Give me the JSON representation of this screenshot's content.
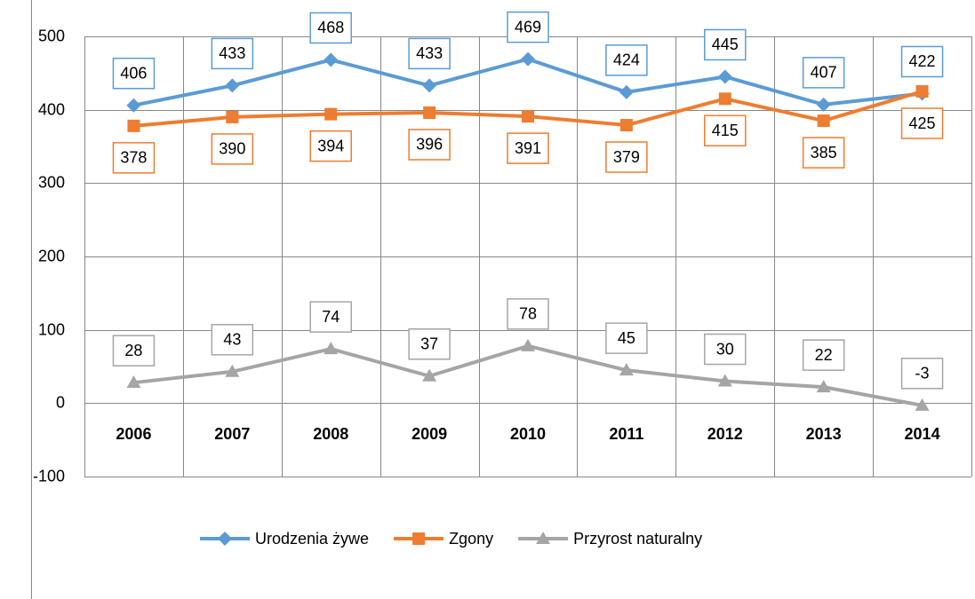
{
  "chart_data": {
    "type": "line",
    "categories": [
      "2006",
      "2007",
      "2008",
      "2009",
      "2010",
      "2011",
      "2012",
      "2013",
      "2014"
    ],
    "series": [
      {
        "name": "Urodzenia żywe",
        "color": "#5b9bd5",
        "marker": "diamond",
        "values": [
          406,
          433,
          468,
          433,
          469,
          424,
          445,
          407,
          422
        ]
      },
      {
        "name": "Zgony",
        "color": "#ed7d31",
        "marker": "square",
        "values": [
          378,
          390,
          394,
          396,
          391,
          379,
          415,
          385,
          425
        ]
      },
      {
        "name": "Przyrost naturalny",
        "color": "#a5a5a5",
        "marker": "triangle",
        "values": [
          28,
          43,
          74,
          37,
          78,
          45,
          30,
          22,
          -3
        ]
      }
    ],
    "ylim": [
      -100,
      500
    ],
    "yticks": [
      -100,
      0,
      100,
      200,
      300,
      400,
      500
    ],
    "grid": true,
    "legend": "bottom"
  }
}
